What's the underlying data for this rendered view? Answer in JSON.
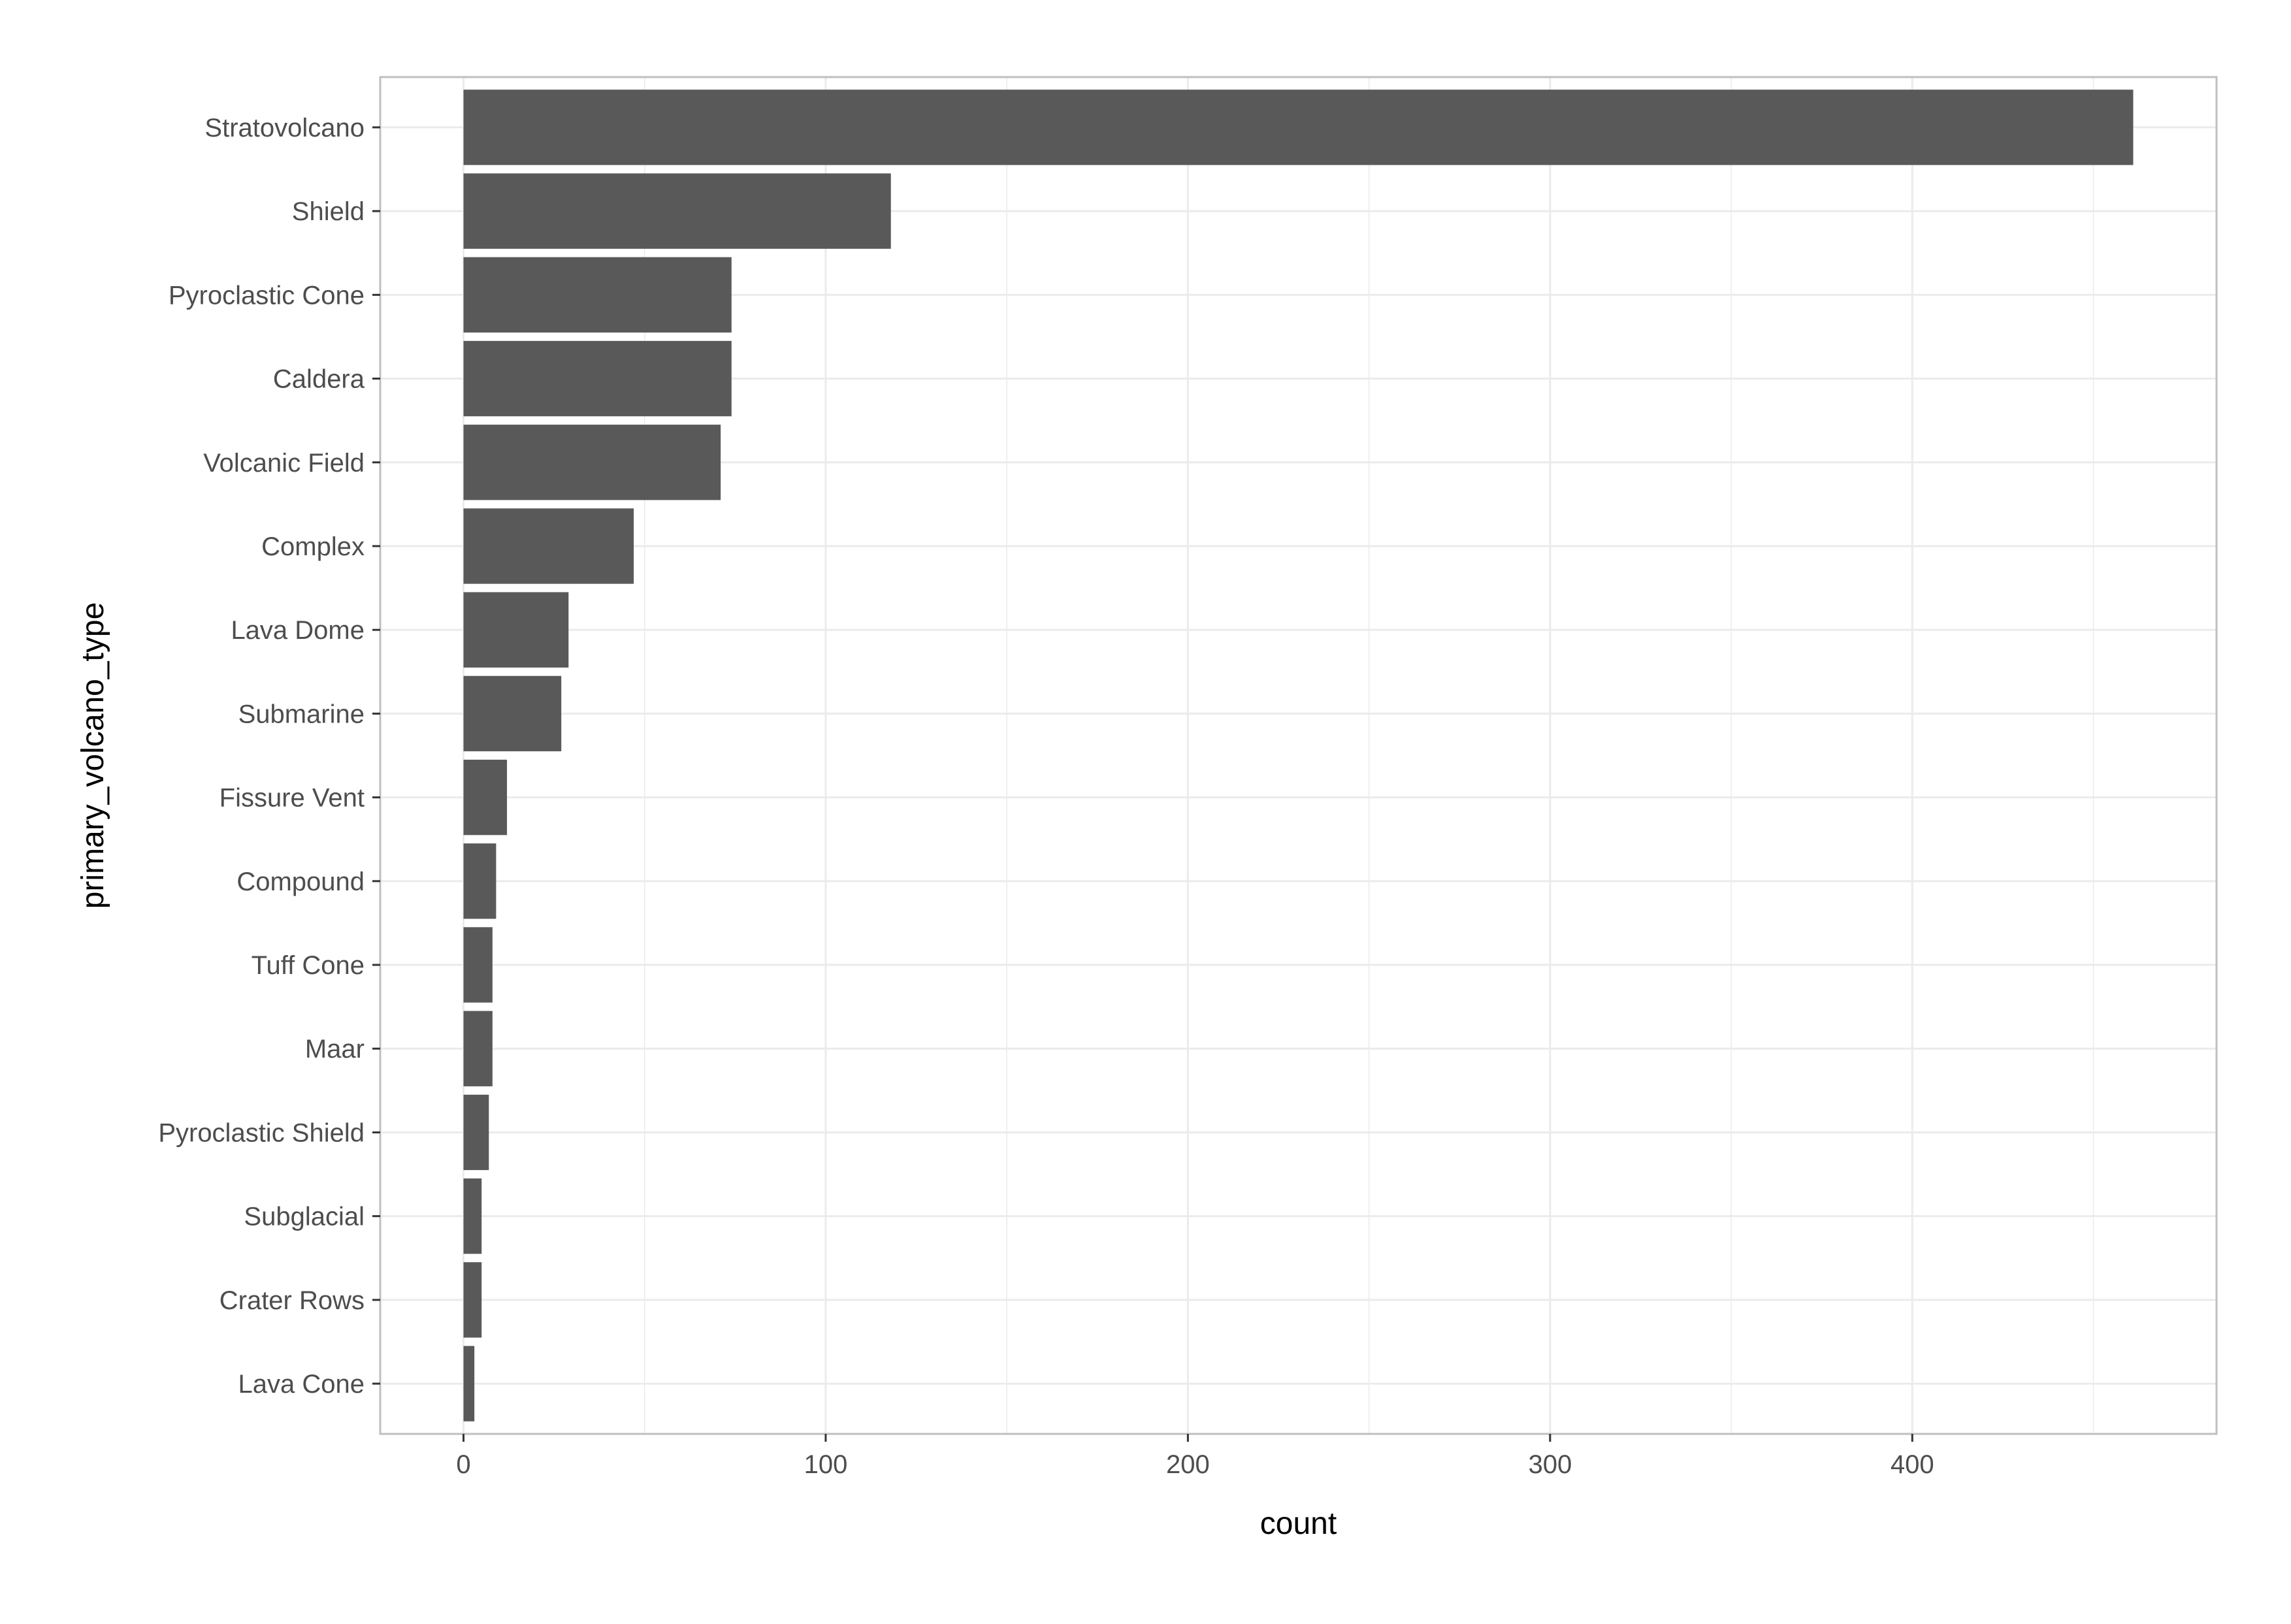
{
  "chart_data": {
    "type": "bar",
    "orientation": "horizontal",
    "categories": [
      "Stratovolcano",
      "Shield",
      "Pyroclastic Cone",
      "Caldera",
      "Volcanic Field",
      "Complex",
      "Lava Dome",
      "Submarine",
      "Fissure Vent",
      "Compound",
      "Tuff Cone",
      "Maar",
      "Pyroclastic Shield",
      "Subglacial",
      "Crater Rows",
      "Lava Cone"
    ],
    "values": [
      461,
      118,
      74,
      74,
      71,
      47,
      29,
      27,
      12,
      9,
      8,
      8,
      7,
      5,
      5,
      3
    ],
    "xlabel": "count",
    "ylabel": "primary_volcano_type",
    "xlim": [
      -23,
      484
    ],
    "xticks": [
      0,
      100,
      200,
      300,
      400
    ],
    "grid": true,
    "legend": "none",
    "colors": {
      "bar": "#595959",
      "grid": "#ebebeb",
      "panel_border": "#bfbfbf",
      "background": "#ffffff"
    }
  }
}
